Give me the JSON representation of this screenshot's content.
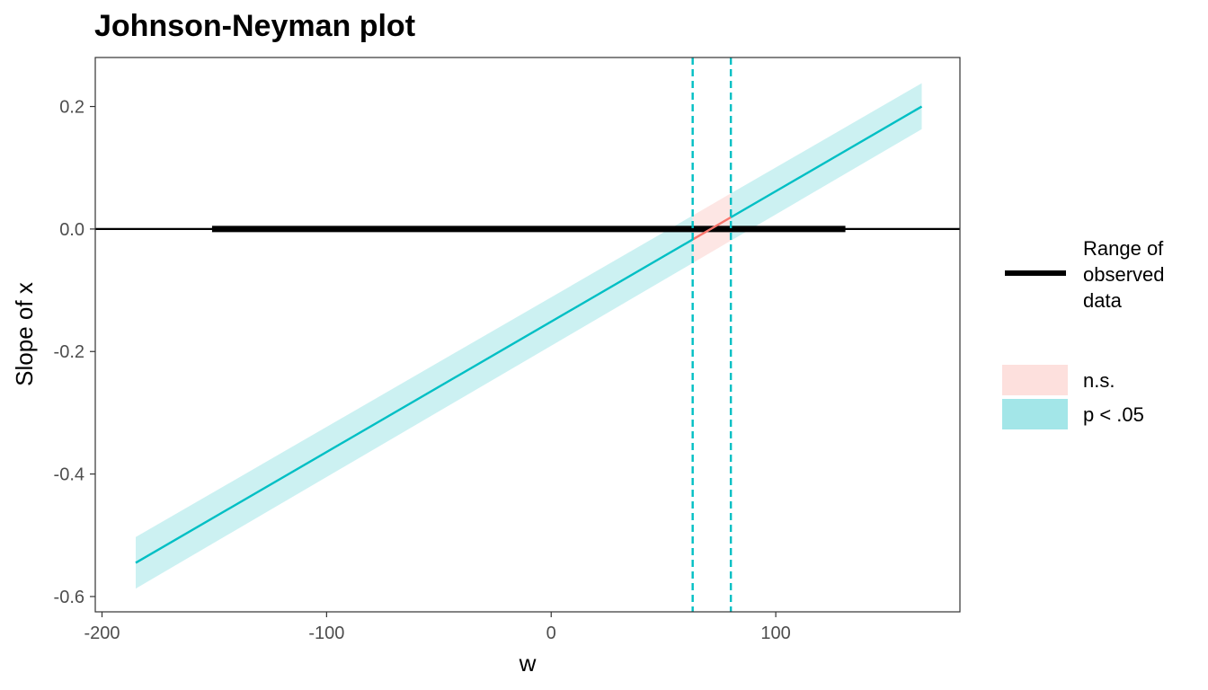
{
  "chart_data": {
    "type": "line",
    "title": "Johnson-Neyman plot",
    "xlabel": "w",
    "ylabel": "Slope of x",
    "xlim": [
      -203,
      182
    ],
    "ylim": [
      -0.625,
      0.28
    ],
    "x_ticks": [
      -200,
      -100,
      0,
      100
    ],
    "x_tick_labels": [
      "-200",
      "-100",
      "0",
      "100"
    ],
    "y_ticks": [
      -0.6,
      -0.4,
      -0.2,
      0.0,
      0.2
    ],
    "y_tick_labels": [
      "-0.6",
      "-0.4",
      "-0.2",
      "0.0",
      "0.2"
    ],
    "grid": false,
    "legend_position": "right",
    "slope_line": {
      "x": [
        -185,
        165
      ],
      "y": [
        -0.545,
        0.2
      ],
      "ci_lower": [
        -0.587,
        0.163
      ],
      "ci_upper": [
        -0.503,
        0.238
      ]
    },
    "significance_bounds": [
      63,
      80
    ],
    "observed_range": [
      -151,
      131
    ],
    "reference_line_y": 0,
    "colors": {
      "significant": "#00bfc4",
      "significant_ribbon": "#a3e6e8",
      "nonsignificant": "#f8766d",
      "nonsignificant_ribbon": "#fde0dd",
      "observed_range": "#000000"
    },
    "legend": {
      "range_label_lines": [
        "Range of",
        "observed",
        "data"
      ],
      "ns_label": "n.s.",
      "sig_label": "p < .05"
    }
  }
}
